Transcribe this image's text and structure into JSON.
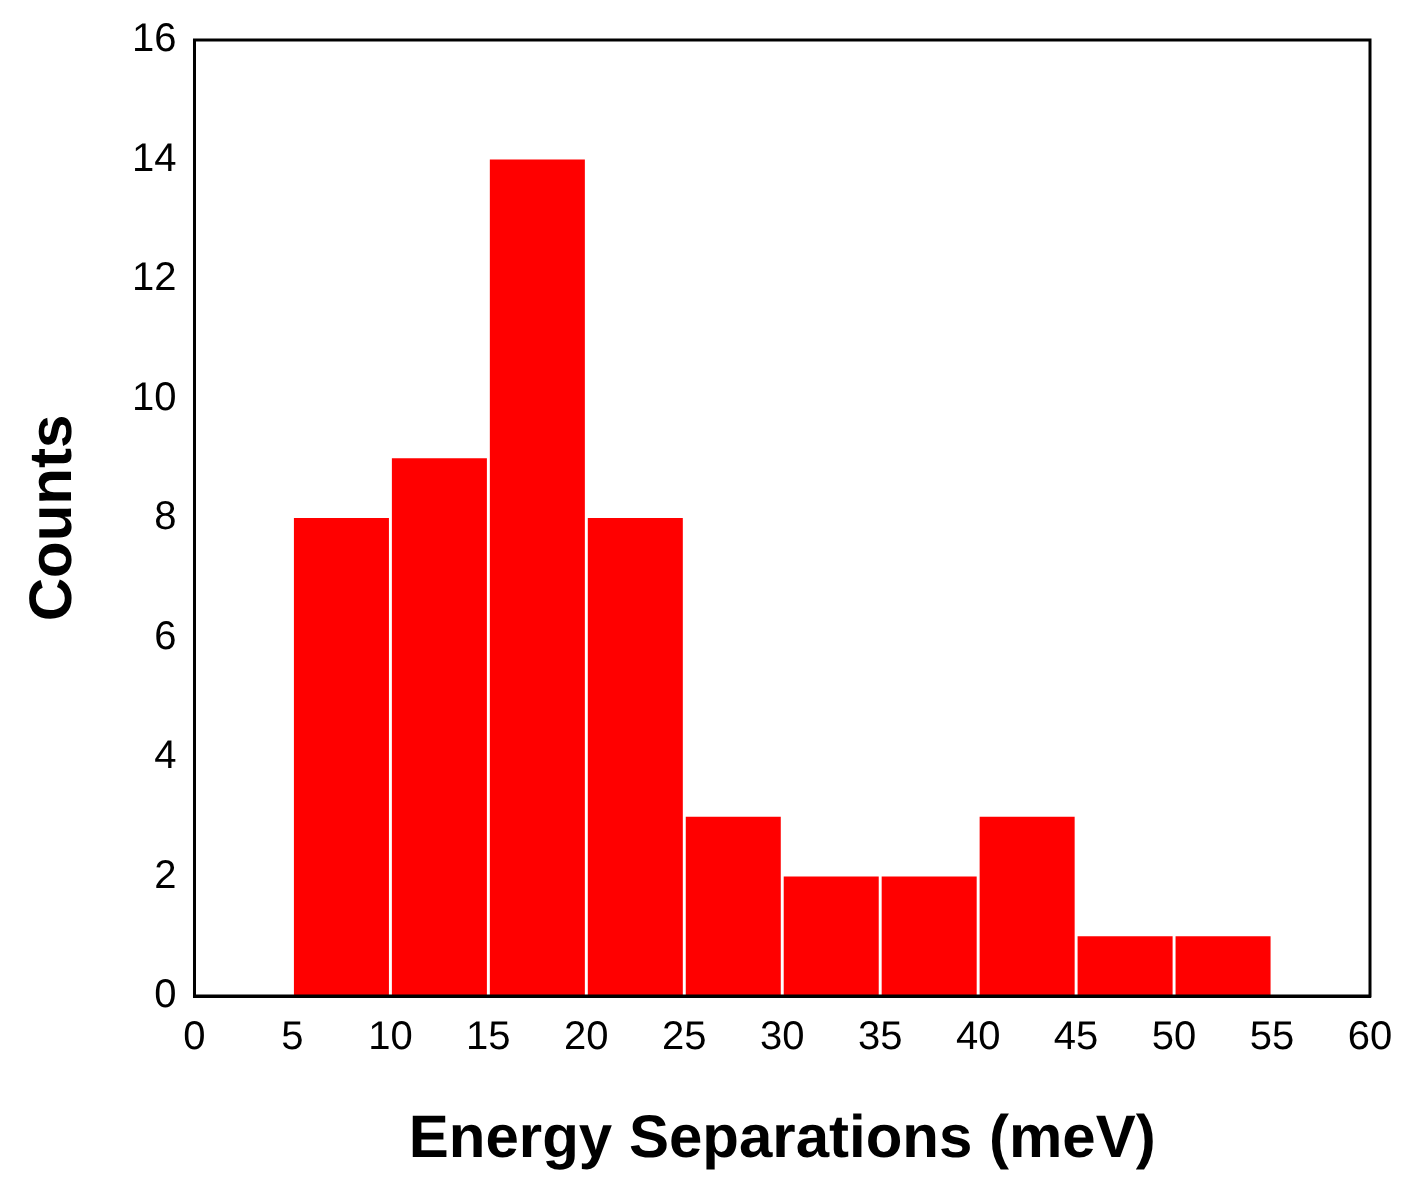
{
  "chart_data": {
    "type": "histogram",
    "xlabel": "Energy Separations (meV)",
    "ylabel": "Counts",
    "bins": [
      5,
      10,
      15,
      20,
      25,
      30,
      35,
      40,
      45,
      50,
      55
    ],
    "values": [
      8,
      9,
      14,
      8,
      3,
      2,
      2,
      3,
      1,
      1
    ],
    "color": "#ff0000",
    "xlim": [
      0,
      60
    ],
    "xticks": [
      0,
      5,
      10,
      15,
      20,
      25,
      30,
      35,
      40,
      45,
      50,
      55,
      60
    ],
    "ylim": [
      0,
      16
    ],
    "yticks": [
      0,
      2,
      4,
      6,
      8,
      10,
      12,
      14,
      16
    ],
    "grid": false,
    "legend": false
  }
}
